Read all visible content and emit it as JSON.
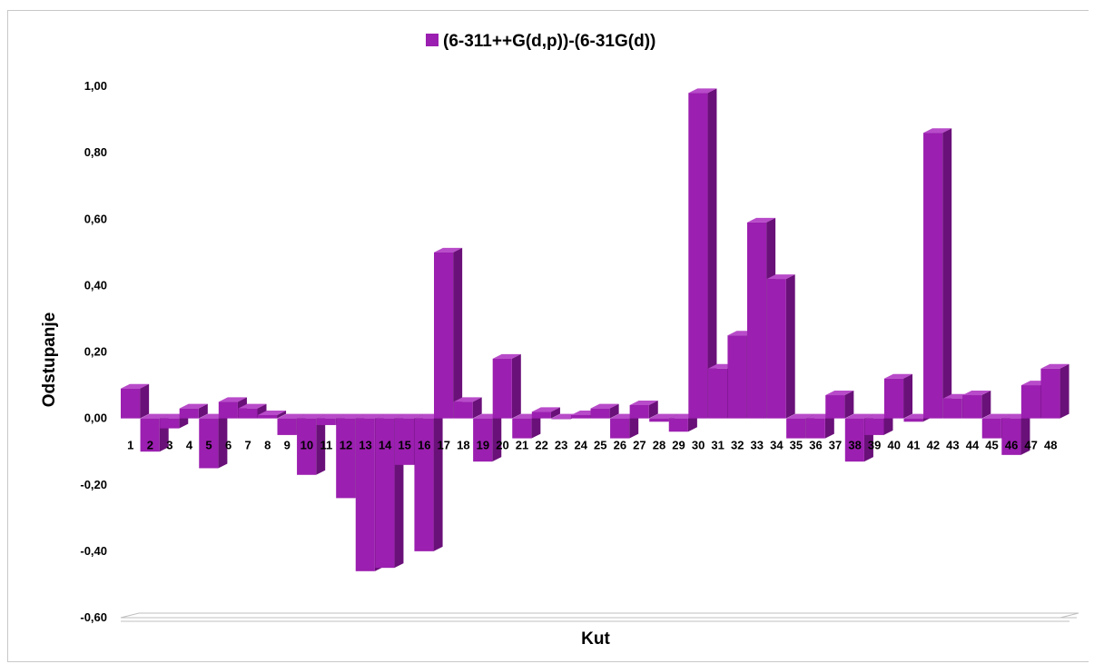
{
  "chart_data": {
    "type": "bar",
    "style": "3d-column",
    "title": "",
    "xlabel": "Kut",
    "ylabel": "Odstupanje",
    "ylim": [
      -0.6,
      1.0
    ],
    "ytick_step": 0.2,
    "ytick_labels": [
      "-0,60",
      "-0,40",
      "-0,20",
      "0,00",
      "0,20",
      "0,40",
      "0,60",
      "0,80",
      "1,00"
    ],
    "grid": false,
    "legend_position": "top-center",
    "categories": [
      "1",
      "2",
      "3",
      "4",
      "5",
      "6",
      "7",
      "8",
      "9",
      "10",
      "11",
      "12",
      "13",
      "14",
      "15",
      "16",
      "17",
      "18",
      "19",
      "20",
      "21",
      "22",
      "23",
      "24",
      "25",
      "26",
      "27",
      "28",
      "29",
      "30",
      "31",
      "32",
      "33",
      "34",
      "35",
      "36",
      "37",
      "38",
      "39",
      "40",
      "41",
      "42",
      "43",
      "44",
      "45",
      "46",
      "47",
      "48"
    ],
    "series": [
      {
        "name": "(6-311++G(d,p))-(6-31G(d))",
        "color": "#9b1fb0",
        "values": [
          0.09,
          -0.1,
          -0.03,
          0.03,
          -0.15,
          0.05,
          0.03,
          0.01,
          -0.05,
          -0.17,
          -0.02,
          -0.24,
          -0.46,
          -0.45,
          -0.14,
          -0.4,
          0.5,
          0.05,
          -0.13,
          0.18,
          -0.06,
          0.02,
          0.0,
          0.01,
          0.03,
          -0.06,
          0.04,
          -0.01,
          -0.04,
          0.98,
          0.15,
          0.25,
          0.59,
          0.42,
          -0.06,
          -0.06,
          0.07,
          -0.13,
          -0.05,
          0.12,
          -0.01,
          0.86,
          0.06,
          0.07,
          -0.06,
          -0.11,
          0.1,
          0.15
        ]
      }
    ]
  },
  "colors": {
    "bar_front": "#9b1fb0",
    "bar_side": "#6a1079",
    "bar_top": "#b84bc9",
    "floor": "#ffffff",
    "floor_edge": "#bfbfbf"
  }
}
